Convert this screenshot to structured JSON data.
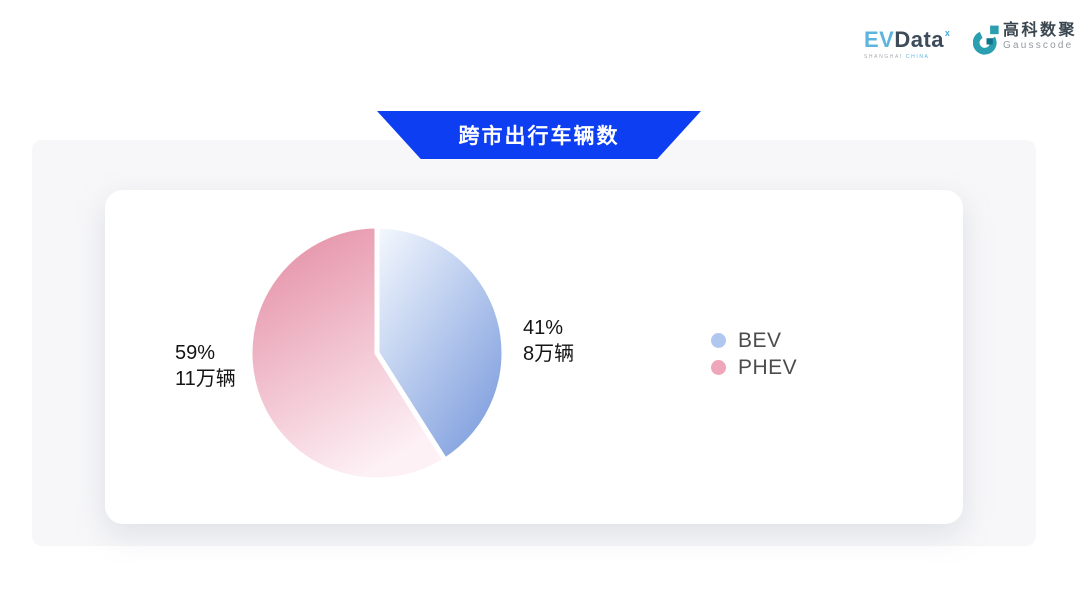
{
  "logos": {
    "evdata": {
      "ev": "EV",
      "data": "Data",
      "sup": "ˣ",
      "subtext_left": "SHANGHAI",
      "subtext_right": "CHINA"
    },
    "gausscode": {
      "cn": "高科数聚",
      "en": "Gausscode",
      "mark_color": "#2b9fb0",
      "mark_color_dark": "#0f7488"
    }
  },
  "banner": {
    "title": "跨市出行车辆数",
    "bg": "#0e3ef2"
  },
  "chart_data": {
    "type": "pie",
    "title": "跨市出行车辆数",
    "unit": "万辆",
    "start_angle_deg": 0,
    "direction": "clockwise",
    "slices": [
      {
        "label": "BEV",
        "percent": 41,
        "value": 8,
        "percent_text": "41%",
        "value_text": "8万辆",
        "gradient": [
          "#f5f9fe",
          "#7e9ede"
        ]
      },
      {
        "label": "PHEV",
        "percent": 59,
        "value": 11,
        "percent_text": "59%",
        "value_text": "11万辆",
        "gradient": [
          "#e48ca3",
          "#fdf1f6"
        ]
      }
    ],
    "legend_position": "right",
    "legend": [
      {
        "label": "BEV",
        "dot": "#b0c8f0"
      },
      {
        "label": "PHEV",
        "dot": "#efa6ba"
      }
    ]
  }
}
